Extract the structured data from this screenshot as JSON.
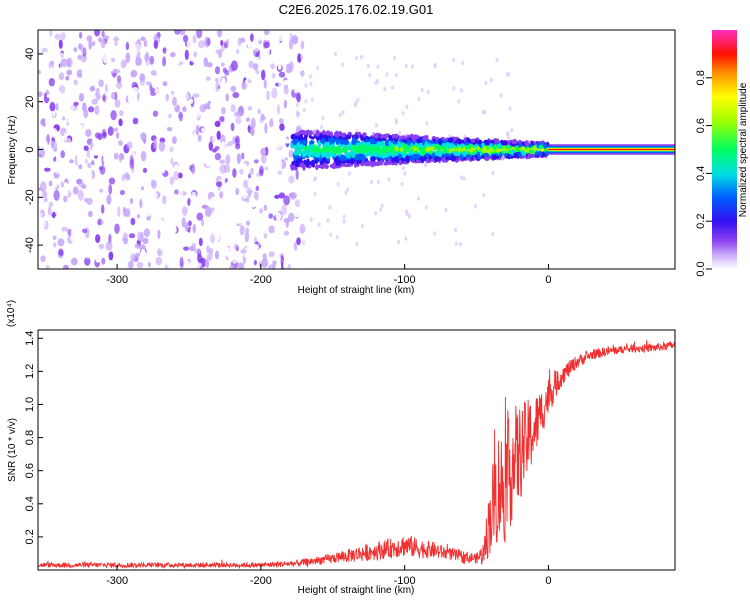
{
  "title": "C2E6.2025.176.02.19.G01",
  "chart_data": [
    {
      "type": "heatmap",
      "xlabel": "Height of straight line (km)",
      "ylabel": "Frequency (Hz)",
      "xlim": [
        -355,
        88
      ],
      "ylim": [
        -50,
        50
      ],
      "xticks": [
        -300,
        -200,
        -100,
        0
      ],
      "yticks": [
        -40,
        -20,
        0,
        20,
        40
      ],
      "colorbar": {
        "label": "Normalized spectral amplitude",
        "range": [
          0,
          1
        ],
        "ticks": [
          0.0,
          0.2,
          0.4,
          0.6,
          0.8
        ],
        "colormap": [
          "#ffffff",
          "#a070f0",
          "#5a00e0",
          "#0000ff",
          "#00e0e0",
          "#00ff40",
          "#ffff00",
          "#ff8000",
          "#ff0000",
          "#ff30c0"
        ]
      },
      "regions": [
        {
          "description_x": [
            -355,
            -175
          ],
          "freq_range": [
            -50,
            50
          ],
          "amplitude_range": [
            0.0,
            0.15
          ]
        },
        {
          "description_x": [
            -178,
            0
          ],
          "freq_center": 0,
          "freq_halfwidth": 8,
          "amplitude_range": [
            0.1,
            0.5
          ]
        },
        {
          "description_x": [
            0,
            88
          ],
          "freq_center": 0,
          "freq_halfwidth": 2,
          "amplitude_range": [
            0.8,
            1.0
          ]
        }
      ]
    },
    {
      "type": "line",
      "xlabel": "Height of straight line (km)",
      "ylabel": "SNR (10 * v/v)",
      "yscale_label": "(x10⁴)",
      "xlim": [
        -355,
        88
      ],
      "ylim": [
        0,
        1.45
      ],
      "xticks": [
        -300,
        -200,
        -100,
        0
      ],
      "yticks": [
        0.2,
        0.4,
        0.6,
        0.8,
        1.0,
        1.2,
        1.4
      ],
      "color": "#f03030",
      "series": [
        {
          "x": [
            -355,
            -300,
            -250,
            -200,
            -175,
            -150,
            -130,
            -110,
            -100,
            -90,
            -80,
            -70,
            -60,
            -50,
            -45,
            -40,
            -35,
            -30,
            -25,
            -20,
            -15,
            -10,
            -5,
            0,
            5,
            10,
            15,
            20,
            30,
            40,
            50,
            60,
            70,
            80,
            88
          ],
          "y": [
            0.03,
            0.03,
            0.03,
            0.03,
            0.04,
            0.07,
            0.1,
            0.13,
            0.15,
            0.13,
            0.12,
            0.1,
            0.08,
            0.07,
            0.1,
            0.35,
            0.5,
            0.5,
            0.65,
            0.7,
            0.78,
            0.85,
            0.95,
            1.05,
            1.12,
            1.18,
            1.22,
            1.26,
            1.3,
            1.32,
            1.33,
            1.34,
            1.34,
            1.35,
            1.36
          ],
          "noise": [
            0.015,
            0.015,
            0.015,
            0.015,
            0.02,
            0.03,
            0.05,
            0.06,
            0.07,
            0.06,
            0.05,
            0.04,
            0.04,
            0.03,
            0.08,
            0.25,
            0.35,
            0.35,
            0.35,
            0.3,
            0.25,
            0.2,
            0.15,
            0.12,
            0.08,
            0.06,
            0.05,
            0.04,
            0.03,
            0.03,
            0.025,
            0.025,
            0.025,
            0.025,
            0.025
          ]
        }
      ]
    }
  ]
}
